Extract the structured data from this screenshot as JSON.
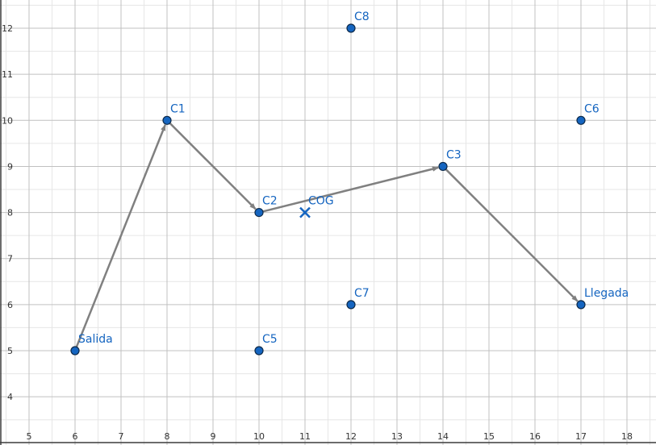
{
  "chart_data": {
    "type": "scatter",
    "title": "",
    "xlabel": "",
    "ylabel": "",
    "xlim": [
      4.5,
      18.7
    ],
    "ylim": [
      3.2,
      12.6
    ],
    "x_ticks": [
      5,
      6,
      7,
      8,
      9,
      10,
      11,
      12,
      13,
      14,
      15,
      16,
      17,
      18
    ],
    "y_ticks": [
      4,
      5,
      6,
      7,
      8,
      9,
      10,
      11,
      12
    ],
    "minor_grid_step": 0.5,
    "grid": true,
    "points": [
      {
        "label": "Salida",
        "x": 6,
        "y": 5
      },
      {
        "label": "C1",
        "x": 8,
        "y": 10
      },
      {
        "label": "C2",
        "x": 10,
        "y": 8
      },
      {
        "label": "C3",
        "x": 14,
        "y": 9
      },
      {
        "label": "Llegada",
        "x": 17,
        "y": 6
      },
      {
        "label": "C5",
        "x": 10,
        "y": 5
      },
      {
        "label": "C6",
        "x": 17,
        "y": 10
      },
      {
        "label": "C7",
        "x": 12,
        "y": 6
      },
      {
        "label": "C8",
        "x": 12,
        "y": 12
      }
    ],
    "cog": {
      "label": "COG",
      "x": 11,
      "y": 8
    },
    "route": [
      "Salida",
      "C1",
      "C2",
      "C3",
      "Llegada"
    ],
    "colors": {
      "point_fill": "#1565c0",
      "point_stroke": "#0d2a4a",
      "label": "#1565c0",
      "arrow": "#808080",
      "major_grid": "#c0c0c0",
      "minor_grid": "#e6e6e6",
      "axis": "#3c3c3c"
    }
  }
}
